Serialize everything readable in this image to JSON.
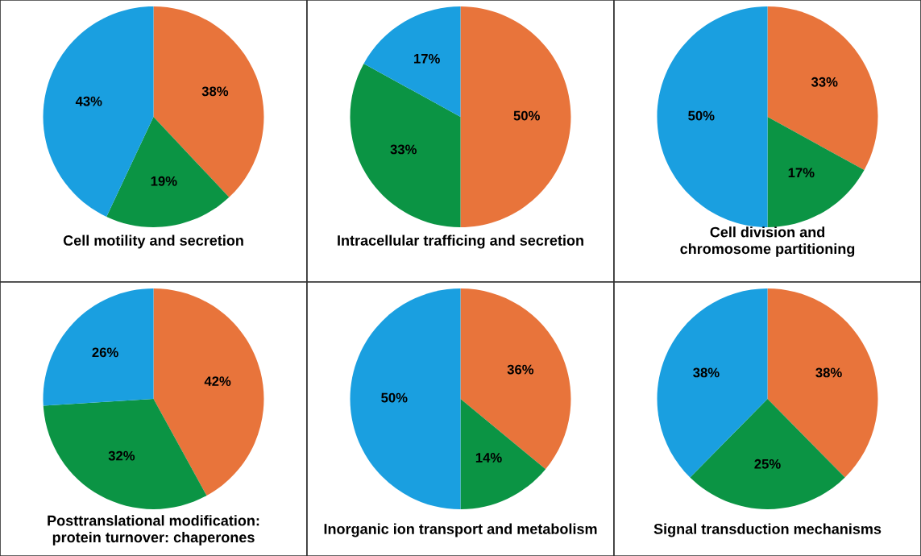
{
  "chart_data": [
    {
      "type": "pie",
      "title": "Cell motility and secretion",
      "categories": [
        null,
        null,
        null
      ],
      "values": [
        38,
        19,
        43
      ],
      "colors": [
        "#e8743b",
        "#0b9444",
        "#1a9fe0"
      ],
      "value_labels": [
        "38%",
        "19%",
        "43%"
      ]
    },
    {
      "type": "pie",
      "title": "Intracellular trafficing and secretion",
      "categories": [
        null,
        null,
        null
      ],
      "values": [
        50,
        33,
        17
      ],
      "colors": [
        "#e8743b",
        "#0b9444",
        "#1a9fe0"
      ],
      "value_labels": [
        "50%",
        "33%",
        "17%"
      ]
    },
    {
      "type": "pie",
      "title": "Cell division and chromosome partitioning",
      "categories": [
        null,
        null,
        null
      ],
      "values": [
        33,
        17,
        50
      ],
      "colors": [
        "#e8743b",
        "#0b9444",
        "#1a9fe0"
      ],
      "value_labels": [
        "33%",
        "17%",
        "50%"
      ]
    },
    {
      "type": "pie",
      "title": "Posttranslational modification: protein turnover: chaperones",
      "categories": [
        null,
        null,
        null
      ],
      "values": [
        42,
        32,
        26
      ],
      "colors": [
        "#e8743b",
        "#0b9444",
        "#1a9fe0"
      ],
      "value_labels": [
        "42%",
        "32%",
        "26%"
      ]
    },
    {
      "type": "pie",
      "title": "Inorganic ion transport and metabolism",
      "categories": [
        null,
        null,
        null
      ],
      "values": [
        36,
        14,
        50
      ],
      "colors": [
        "#e8743b",
        "#0b9444",
        "#1a9fe0"
      ],
      "value_labels": [
        "36%",
        "14%",
        "50%"
      ]
    },
    {
      "type": "pie",
      "title": "Signal transduction mechanisms",
      "categories": [
        null,
        null,
        null
      ],
      "values": [
        38,
        25,
        38
      ],
      "colors": [
        "#e8743b",
        "#0b9444",
        "#1a9fe0"
      ],
      "value_labels": [
        "38%",
        "25%",
        "38%"
      ]
    }
  ]
}
